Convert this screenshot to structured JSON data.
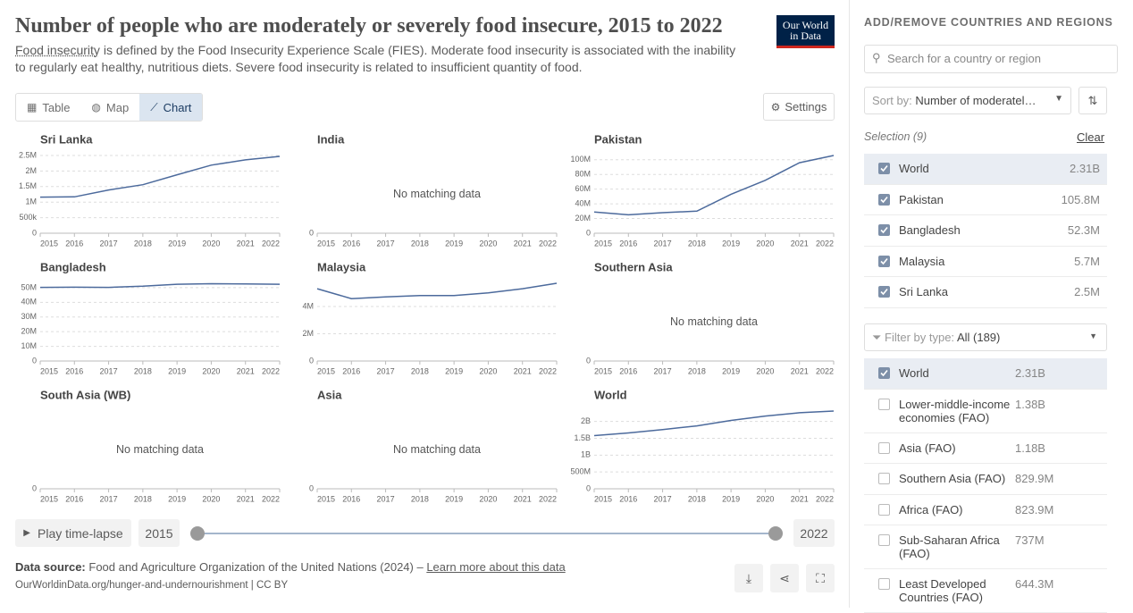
{
  "header": {
    "title": "Number of people who are moderately or severely food insecure, 2015 to 2022",
    "subtitle_link": "Food insecurity",
    "subtitle": " is defined by the Food Insecurity Experience Scale (FIES). Moderate food insecurity is associated with the inability to regularly eat healthy, nutritious diets. Severe food insecurity is related to insufficient quantity of food.",
    "logo": [
      "Our World",
      "in Data"
    ]
  },
  "tabs": {
    "items": [
      "Table",
      "Map",
      "Chart"
    ],
    "active": 2,
    "settings": "Settings"
  },
  "chart_data": [
    {
      "type": "line",
      "title": "Sri Lanka",
      "color": "#4c6a9c",
      "x": [
        2015,
        2016,
        2017,
        2018,
        2019,
        2020,
        2021,
        2022
      ],
      "values": [
        1160000,
        1170000,
        1390000,
        1560000,
        1880000,
        2190000,
        2360000,
        2470000
      ],
      "xlim": [
        2015,
        2022
      ],
      "xticks": [
        2015,
        2016,
        2017,
        2018,
        2019,
        2020,
        2021,
        2022
      ],
      "ylim": [
        0,
        2500000
      ],
      "yticks": [
        0,
        {
          "value": 500000,
          "label": "500k"
        },
        {
          "value": 1000000,
          "label": "1M"
        },
        {
          "value": 1500000,
          "label": "1.5M"
        },
        {
          "value": 2000000,
          "label": "2M"
        },
        {
          "value": 2500000,
          "label": "2.5M"
        }
      ],
      "grid": true
    },
    {
      "type": "line",
      "title": "India",
      "note": "No matching data",
      "xlim": [
        2015,
        2022
      ],
      "xticks": [
        2015,
        2016,
        2017,
        2018,
        2019,
        2020,
        2021,
        2022
      ],
      "yticks": [
        0
      ]
    },
    {
      "type": "line",
      "title": "Pakistan",
      "color": "#4c6a9c",
      "x": [
        2015,
        2016,
        2017,
        2018,
        2019,
        2020,
        2021,
        2022
      ],
      "values": [
        29000000,
        25000000,
        28000000,
        30000000,
        53000000,
        72000000,
        96000000,
        105800000
      ],
      "xlim": [
        2015,
        2022
      ],
      "xticks": [
        2015,
        2016,
        2017,
        2018,
        2019,
        2020,
        2021,
        2022
      ],
      "ylim": [
        0,
        105800000
      ],
      "yticks": [
        0,
        {
          "value": 20000000,
          "label": "20M"
        },
        {
          "value": 40000000,
          "label": "40M"
        },
        {
          "value": 60000000,
          "label": "60M"
        },
        {
          "value": 80000000,
          "label": "80M"
        },
        {
          "value": 100000000,
          "label": "100M"
        }
      ],
      "grid": true
    },
    {
      "type": "line",
      "title": "Bangladesh",
      "color": "#4c6a9c",
      "x": [
        2015,
        2016,
        2017,
        2018,
        2019,
        2020,
        2021,
        2022
      ],
      "values": [
        50200000,
        50300000,
        50200000,
        51000000,
        52300000,
        52700000,
        52500000,
        52300000
      ],
      "xlim": [
        2015,
        2022
      ],
      "xticks": [
        2015,
        2016,
        2017,
        2018,
        2019,
        2020,
        2021,
        2022
      ],
      "ylim": [
        0,
        53000000
      ],
      "yticks": [
        0,
        {
          "value": 10000000,
          "label": "10M"
        },
        {
          "value": 20000000,
          "label": "20M"
        },
        {
          "value": 30000000,
          "label": "30M"
        },
        {
          "value": 40000000,
          "label": "40M"
        },
        {
          "value": 50000000,
          "label": "50M"
        }
      ],
      "grid": true
    },
    {
      "type": "line",
      "title": "Malaysia",
      "color": "#4c6a9c",
      "x": [
        2015,
        2016,
        2017,
        2018,
        2019,
        2020,
        2021,
        2022
      ],
      "values": [
        5300000,
        4570000,
        4700000,
        4800000,
        4800000,
        5000000,
        5300000,
        5700000
      ],
      "xlim": [
        2015,
        2022
      ],
      "xticks": [
        2015,
        2016,
        2017,
        2018,
        2019,
        2020,
        2021,
        2022
      ],
      "ylim": [
        0,
        5700000
      ],
      "yticks": [
        0,
        {
          "value": 2000000,
          "label": "2M"
        },
        {
          "value": 4000000,
          "label": "4M"
        }
      ],
      "grid": true
    },
    {
      "type": "line",
      "title": "Southern Asia",
      "note": "No matching data",
      "xlim": [
        2015,
        2022
      ],
      "xticks": [
        2015,
        2016,
        2017,
        2018,
        2019,
        2020,
        2021,
        2022
      ],
      "yticks": [
        0
      ]
    },
    {
      "type": "line",
      "title": "South Asia (WB)",
      "note": "No matching data",
      "xlim": [
        2015,
        2022
      ],
      "xticks": [
        2015,
        2016,
        2017,
        2018,
        2019,
        2020,
        2021,
        2022
      ],
      "yticks": [
        0
      ]
    },
    {
      "type": "line",
      "title": "Asia",
      "note": "No matching data",
      "xlim": [
        2015,
        2022
      ],
      "xticks": [
        2015,
        2016,
        2017,
        2018,
        2019,
        2020,
        2021,
        2022
      ],
      "yticks": [
        0
      ]
    },
    {
      "type": "line",
      "title": "World",
      "color": "#4c6a9c",
      "x": [
        2015,
        2016,
        2017,
        2018,
        2019,
        2020,
        2021,
        2022
      ],
      "values": [
        1580000000,
        1660000000,
        1760000000,
        1870000000,
        2030000000,
        2160000000,
        2260000000,
        2310000000
      ],
      "xlim": [
        2015,
        2022
      ],
      "xticks": [
        2015,
        2016,
        2017,
        2018,
        2019,
        2020,
        2021,
        2022
      ],
      "ylim": [
        0,
        2310000000
      ],
      "yticks": [
        0,
        {
          "value": 500000000,
          "label": "500M"
        },
        {
          "value": 1000000000,
          "label": "1B"
        },
        {
          "value": 1500000000,
          "label": "1.5B"
        },
        {
          "value": 2000000000,
          "label": "2B"
        }
      ],
      "grid": true
    }
  ],
  "timeline": {
    "play": "Play time-lapse",
    "start": 2015,
    "end": 2022
  },
  "footer": {
    "source_label": "Data source:",
    "source": "Food and Agriculture Organization of the United Nations (2024) – ",
    "source_link": "Learn more about this data",
    "url": "OurWorldinData.org/hunger-and-undernourishment | CC BY"
  },
  "sidebar": {
    "title": "ADD/REMOVE COUNTRIES AND REGIONS",
    "search": "Search for a country or region",
    "sort_label": "Sort by:",
    "sort_value": "Number of moderatel…",
    "selection": "Selection (9)",
    "clear": "Clear",
    "selected": [
      {
        "name": "World",
        "value": "2.31B"
      },
      {
        "name": "Pakistan",
        "value": "105.8M"
      },
      {
        "name": "Bangladesh",
        "value": "52.3M"
      },
      {
        "name": "Malaysia",
        "value": "5.7M"
      },
      {
        "name": "Sri Lanka",
        "value": "2.5M"
      }
    ],
    "filter_label": "Filter by type:",
    "filter_value": "All (189)",
    "entities": [
      {
        "name": "World",
        "value": "2.31B",
        "checked": true
      },
      {
        "name": "Lower-middle-income economies (FAO)",
        "value": "1.38B",
        "checked": false
      },
      {
        "name": "Asia (FAO)",
        "value": "1.18B",
        "checked": false
      },
      {
        "name": "Southern Asia (FAO)",
        "value": "829.9M",
        "checked": false
      },
      {
        "name": "Africa (FAO)",
        "value": "823.9M",
        "checked": false
      },
      {
        "name": "Sub-Saharan Africa (FAO)",
        "value": "737M",
        "checked": false
      },
      {
        "name": "Least Developed Countries (FAO)",
        "value": "644.3M",
        "checked": false
      }
    ]
  }
}
